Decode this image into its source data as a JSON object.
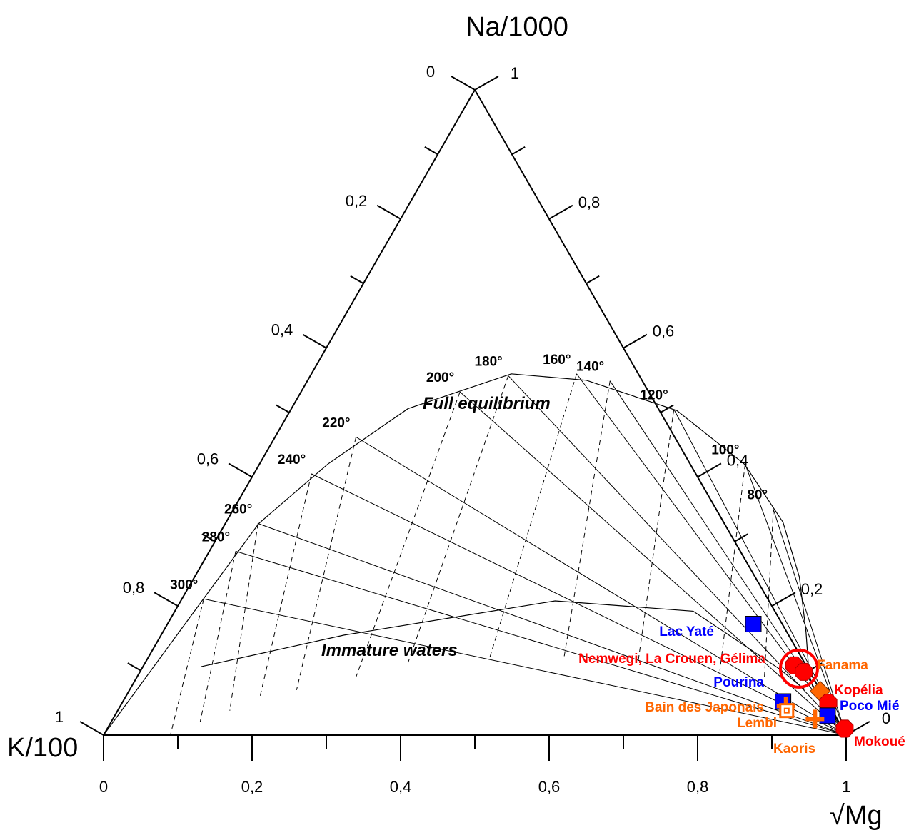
{
  "chart_data": {
    "type": "scatter",
    "subtype": "ternary",
    "apex_labels": {
      "top": "Na/1000",
      "left": "K/100",
      "right": "√Mg"
    },
    "axes": {
      "bottom": {
        "variable": "√Mg",
        "ticks": [
          "0",
          "0,2",
          "0,4",
          "0,6",
          "0,8",
          "1"
        ]
      },
      "left": {
        "variable": "K/100",
        "ticks": [
          "1",
          "0,8",
          "0,6",
          "0,4",
          "0,2",
          "0"
        ]
      },
      "right": {
        "variable": "Na/1000",
        "ticks": [
          "0",
          "0,2",
          "0,4",
          "0,6",
          "0,8",
          "1"
        ]
      }
    },
    "region_labels": [
      "Full equilibrium",
      "Immature waters"
    ],
    "full_equilibrium_curve": [
      [
        0.0,
        0.0
      ],
      [
        0.137,
        0.215
      ],
      [
        0.209,
        0.328
      ],
      [
        0.302,
        0.42
      ],
      [
        0.41,
        0.506
      ],
      [
        0.549,
        0.56
      ],
      [
        0.65,
        0.55
      ],
      [
        0.772,
        0.503
      ],
      [
        0.863,
        0.42
      ],
      [
        0.915,
        0.33
      ],
      [
        0.937,
        0.245
      ],
      [
        0.946,
        0.16
      ],
      [
        0.95,
        0.095
      ],
      [
        0.955,
        0.075
      ]
    ],
    "immature_curve": [
      [
        0.131,
        0.106
      ],
      [
        0.324,
        0.155
      ],
      [
        0.608,
        0.208
      ],
      [
        0.794,
        0.192
      ],
      [
        0.911,
        0.102
      ],
      [
        0.945,
        0.07
      ]
    ],
    "isotherms": [
      {
        "label": "300°",
        "t": 300,
        "on_curve": [
          0.135,
          0.211
        ],
        "start": [
          0.09,
          0.0
        ]
      },
      {
        "label": "280°",
        "t": 280,
        "on_curve": [
          0.178,
          0.285
        ],
        "start": [
          0.13,
          0.02
        ]
      },
      {
        "label": "260°",
        "t": 260,
        "on_curve": [
          0.208,
          0.328
        ],
        "start": [
          0.17,
          0.038
        ]
      },
      {
        "label": "240°",
        "t": 240,
        "on_curve": [
          0.28,
          0.405
        ],
        "start": [
          0.21,
          0.056
        ]
      },
      {
        "label": "220°",
        "t": 220,
        "on_curve": [
          0.34,
          0.462
        ],
        "start": [
          0.26,
          0.07
        ]
      },
      {
        "label": "200°",
        "t": 200,
        "on_curve": [
          0.48,
          0.532
        ],
        "start": [
          0.34,
          0.09
        ]
      },
      {
        "label": "180°",
        "t": 180,
        "on_curve": [
          0.545,
          0.557
        ],
        "start": [
          0.41,
          0.112
        ]
      },
      {
        "label": "160°",
        "t": 160,
        "on_curve": [
          0.637,
          0.56
        ],
        "start": [
          0.52,
          0.12
        ]
      },
      {
        "label": "140°",
        "t": 140,
        "on_curve": [
          0.682,
          0.549
        ],
        "start": [
          0.62,
          0.12
        ]
      },
      {
        "label": "120°",
        "t": 120,
        "on_curve": [
          0.768,
          0.505
        ],
        "start": [
          0.72,
          0.115
        ]
      },
      {
        "label": "100°",
        "t": 100,
        "on_curve": [
          0.864,
          0.42
        ],
        "start": [
          0.83,
          0.1
        ]
      },
      {
        "label": "80°",
        "t": 80,
        "on_curve": [
          0.902,
          0.35
        ],
        "start": [
          0.89,
          0.09
        ]
      }
    ],
    "samples": [
      {
        "name": "Lac Yaté",
        "group": "blue",
        "marker": "square",
        "x": 0.875,
        "y": 0.172
      },
      {
        "name": "Nemwegi, La Crouen, Gélima",
        "group": "red",
        "marker": "octagon",
        "x": 0.93,
        "y": 0.108,
        "highlight": true
      },
      {
        "name": "Nemwegi, La Crouen, Gélima",
        "group": "red",
        "marker": "octagon",
        "x": 0.943,
        "y": 0.098,
        "highlight": true
      },
      {
        "name": "Fanama",
        "group": "orange",
        "marker": "diamond",
        "x": 0.965,
        "y": 0.068
      },
      {
        "name": "Pourina",
        "group": "blue",
        "marker": "square",
        "x": 0.915,
        "y": 0.052
      },
      {
        "name": "Kopélia",
        "group": "red",
        "marker": "octagon",
        "x": 0.976,
        "y": 0.05
      },
      {
        "name": "Bain des Japonais",
        "group": "orange",
        "marker": "cross",
        "x": 0.919,
        "y": 0.045
      },
      {
        "name": "Lembi",
        "group": "orange",
        "marker": "square-dot",
        "x": 0.92,
        "y": 0.038
      },
      {
        "name": "Poco Mié",
        "group": "blue",
        "marker": "square",
        "x": 0.975,
        "y": 0.03
      },
      {
        "name": "Kaoris",
        "group": "orange",
        "marker": "cross",
        "x": 0.958,
        "y": 0.025
      },
      {
        "name": "Mokoué",
        "group": "red",
        "marker": "octagon",
        "x": 0.998,
        "y": 0.01
      }
    ],
    "colors": {
      "blue": "#0000ff",
      "red": "#ff0000",
      "orange": "#ff6600",
      "highlight_ring": "#ff0000"
    }
  }
}
